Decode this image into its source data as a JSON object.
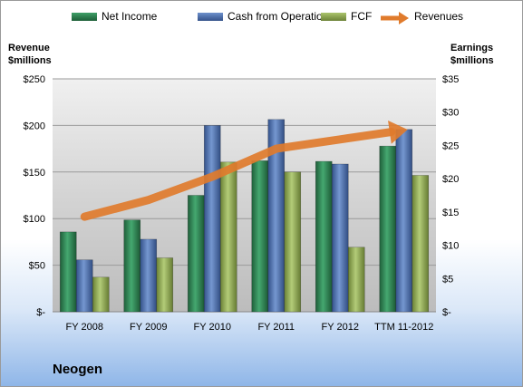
{
  "chart_data": {
    "type": "bar",
    "title": "Neogen",
    "categories": [
      "FY 2008",
      "FY 2009",
      "FY 2010",
      "FY 2011",
      "FY 2012",
      "TTM 11-2012"
    ],
    "series": [
      {
        "name": "Net Income",
        "axis": "right",
        "values": [
          12.0,
          13.8,
          17.5,
          22.7,
          22.6,
          24.9
        ],
        "color": "#2e7d4f"
      },
      {
        "name": "Cash from Operations",
        "axis": "right",
        "values": [
          7.8,
          10.9,
          28.0,
          28.9,
          22.2,
          27.4
        ],
        "color": "#4a6fb0"
      },
      {
        "name": "FCF",
        "axis": "right",
        "values": [
          5.2,
          8.1,
          22.5,
          21.0,
          9.7,
          20.5
        ],
        "color": "#8fa850"
      },
      {
        "name": "Revenues",
        "type": "line",
        "axis": "left",
        "values": [
          102,
          120,
          145,
          175,
          185,
          195
        ],
        "color": "#e07b2c"
      }
    ],
    "left_axis": {
      "label": "Revenue\n$millions",
      "ylim": [
        0,
        250
      ],
      "ticks": [
        "$-",
        "$50",
        "$100",
        "$150",
        "$200",
        "$250"
      ]
    },
    "right_axis": {
      "label": "Earnings\n$millions",
      "ylim": [
        0,
        35
      ],
      "ticks": [
        "$-",
        "$5",
        "$10",
        "$15",
        "$20",
        "$25",
        "$30",
        "$35"
      ]
    },
    "legend_position": "top",
    "grid": true
  }
}
